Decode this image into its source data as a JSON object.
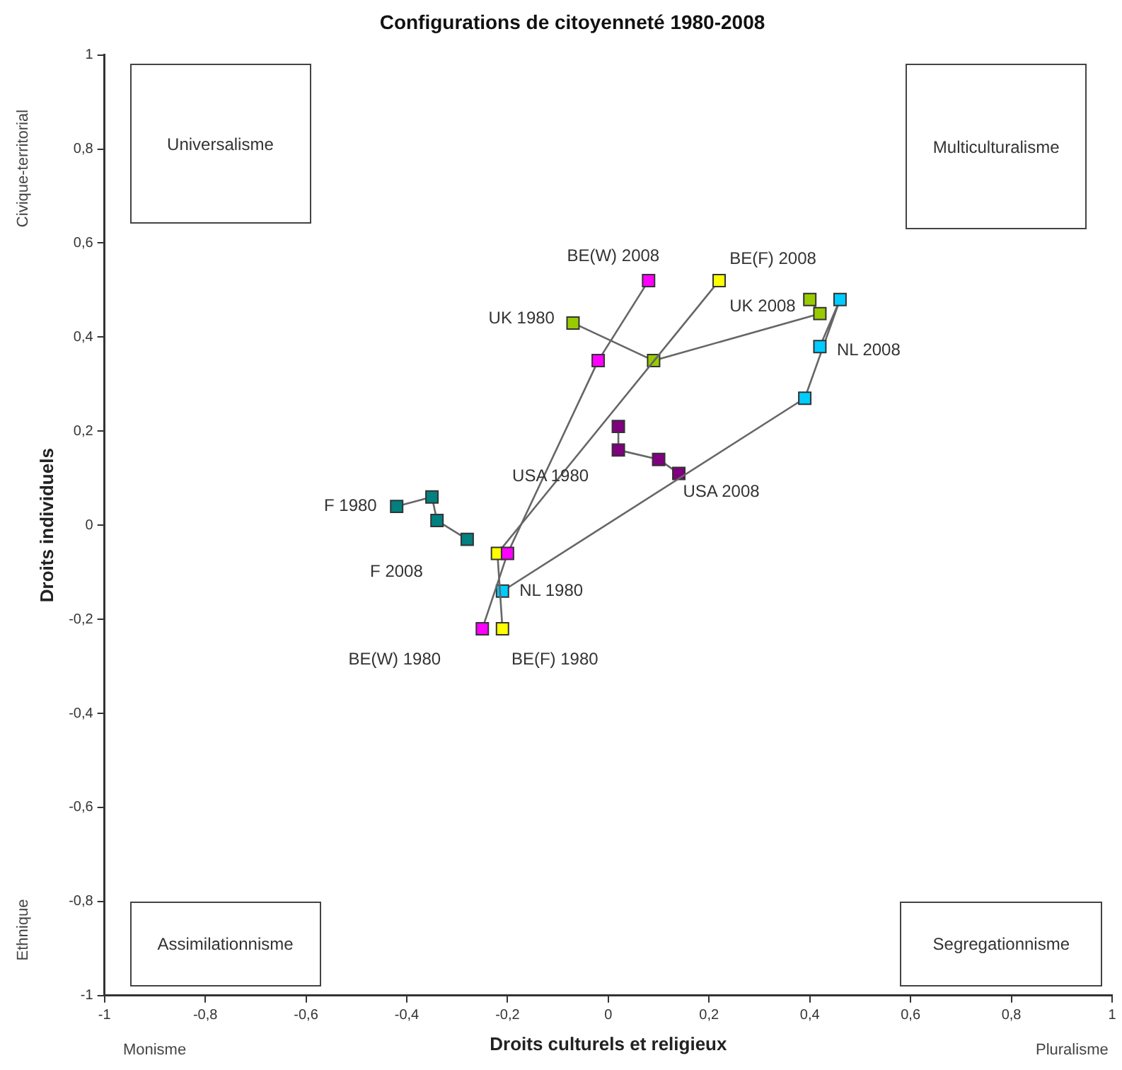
{
  "chart_data": {
    "type": "line",
    "title": "Configurations de citoyenneté 1980-2008",
    "xlabel": "Droits culturels et religieux",
    "ylabel": "Droits individuels",
    "xlim": [
      -1,
      1
    ],
    "ylim": [
      -1,
      1
    ],
    "xticks": [
      {
        "value": -1,
        "label": "-1"
      },
      {
        "value": -0.8,
        "label": "-0,8"
      },
      {
        "value": -0.6,
        "label": "-0,6"
      },
      {
        "value": -0.4,
        "label": "-0,4"
      },
      {
        "value": -0.2,
        "label": "-0,2"
      },
      {
        "value": 0,
        "label": "0"
      },
      {
        "value": 0.2,
        "label": "0,2"
      },
      {
        "value": 0.4,
        "label": "0,4"
      },
      {
        "value": 0.6,
        "label": "0,6"
      },
      {
        "value": 0.8,
        "label": "0,8"
      },
      {
        "value": 1,
        "label": "1"
      }
    ],
    "yticks": [
      {
        "value": -1,
        "label": "-1"
      },
      {
        "value": -0.8,
        "label": "-0,8"
      },
      {
        "value": -0.6,
        "label": "-0,6"
      },
      {
        "value": -0.4,
        "label": "-0,4"
      },
      {
        "value": -0.2,
        "label": "-0,2"
      },
      {
        "value": 0,
        "label": "0"
      },
      {
        "value": 0.2,
        "label": "0,2"
      },
      {
        "value": 0.4,
        "label": "0,4"
      },
      {
        "value": 0.6,
        "label": "0,6"
      },
      {
        "value": 0.8,
        "label": "0,8"
      },
      {
        "value": 1,
        "label": "1"
      }
    ],
    "grid": false,
    "legend": false,
    "marker": "square",
    "line_style": "solid",
    "series": [
      {
        "color": "#008080",
        "x": [
          -0.42,
          -0.35,
          -0.34,
          -0.28
        ],
        "values": [
          0.04,
          0.06,
          0.01,
          -0.03
        ]
      },
      {
        "color": "#ff00ff",
        "x": [
          -0.25,
          -0.2,
          -0.02,
          0.08
        ],
        "values": [
          -0.22,
          -0.06,
          0.35,
          0.52
        ]
      },
      {
        "color": "#ffff00",
        "x": [
          -0.21,
          -0.22,
          0.22
        ],
        "values": [
          -0.22,
          -0.06,
          0.52
        ]
      },
      {
        "color": "#99cc00",
        "x": [
          -0.07,
          0.09,
          0.42,
          0.4
        ],
        "values": [
          0.43,
          0.35,
          0.45,
          0.48
        ]
      },
      {
        "color": "#00ccff",
        "x": [
          -0.21,
          0.39,
          0.46,
          0.42
        ],
        "values": [
          -0.14,
          0.27,
          0.48,
          0.38
        ]
      },
      {
        "color": "#800080",
        "x": [
          0.02,
          0.02,
          0.1,
          0.14
        ],
        "values": [
          0.21,
          0.16,
          0.14,
          0.11
        ]
      }
    ],
    "annotations": [
      {
        "text": "F 1980",
        "x": -0.42,
        "y": 0.04
      },
      {
        "text": "F 2008",
        "x": -0.28,
        "y": -0.03
      },
      {
        "text": "BE(W) 1980",
        "x": -0.25,
        "y": -0.22
      },
      {
        "text": "BE(F) 1980",
        "x": -0.21,
        "y": -0.22
      },
      {
        "text": "NL 1980",
        "x": -0.21,
        "y": -0.14
      },
      {
        "text": "BE(W) 2008",
        "x": 0.08,
        "y": 0.52
      },
      {
        "text": "BE(F) 2008",
        "x": 0.22,
        "y": 0.52
      },
      {
        "text": "UK 1980",
        "x": -0.07,
        "y": 0.43
      },
      {
        "text": "UK 2008",
        "x": 0.4,
        "y": 0.48
      },
      {
        "text": "NL 2008",
        "x": 0.42,
        "y": 0.38
      },
      {
        "text": "USA 1980",
        "x": 0.02,
        "y": 0.16
      },
      {
        "text": "USA 2008",
        "x": 0.14,
        "y": 0.11
      },
      "Universalisme",
      "Multiculturalisme",
      "Assimilationnisme",
      "Segregationnisme",
      "Civique-territorial",
      "Ethnique",
      "Monisme",
      "Pluralisme"
    ]
  }
}
